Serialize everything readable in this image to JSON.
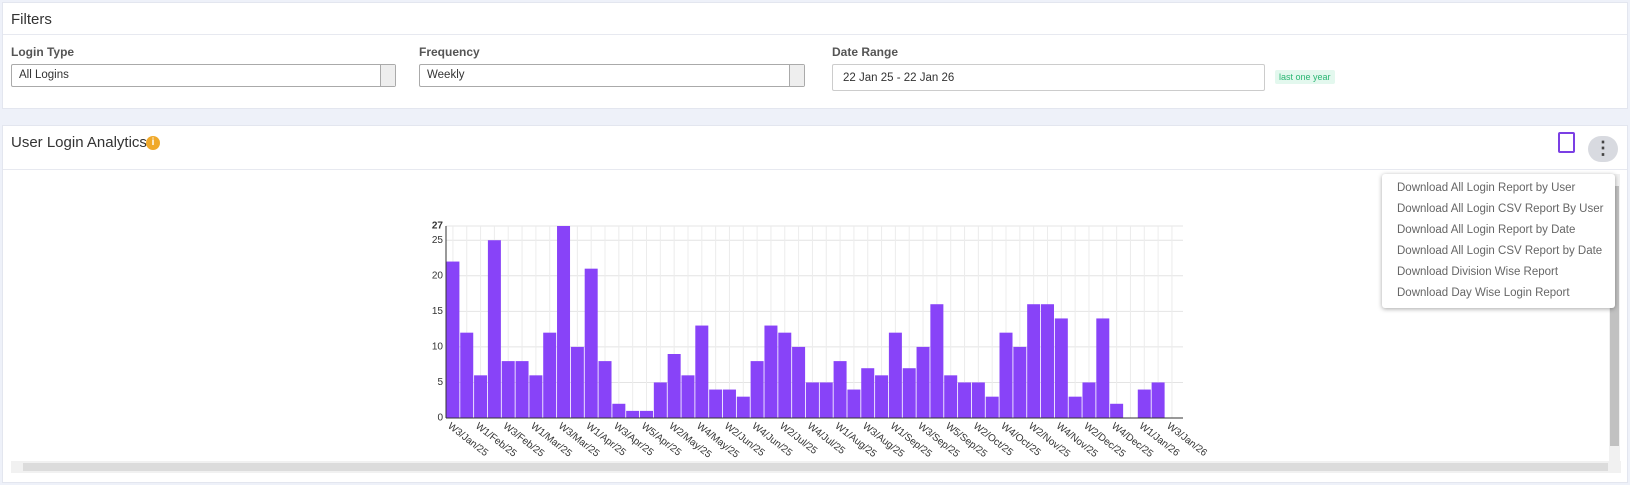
{
  "filters": {
    "title": "Filters",
    "login_type": {
      "label": "Login Type",
      "value": "All Logins"
    },
    "frequency": {
      "label": "Frequency",
      "value": "Weekly"
    },
    "date_range": {
      "label": "Date Range",
      "value": "22 Jan 25 - 22 Jan 26",
      "badge": "last one year"
    }
  },
  "panel": {
    "title": "User Login Analytics",
    "menu": [
      "Download All Login Report by User",
      "Download All Login CSV Report By User",
      "Download All Login Report by Date",
      "Download All Login CSV Report by Date",
      "Download Division Wise Report",
      "Download Day Wise Login Report"
    ]
  },
  "chart_data": {
    "type": "bar",
    "categories": [
      "W3/Jan/25",
      null,
      "W1/Feb/25",
      null,
      "W3/Feb/25",
      null,
      "W1/Mar/25",
      null,
      "W3/Mar/25",
      null,
      "W1/Apr/25",
      null,
      "W3/Apr/25",
      null,
      "W5/Apr/25",
      null,
      "W2/May/25",
      null,
      "W4/May/25",
      null,
      "W2/Jun/25",
      null,
      "W4/Jun/25",
      null,
      "W2/Jul/25",
      null,
      "W4/Jul/25",
      null,
      "W1/Aug/25",
      null,
      "W3/Aug/25",
      null,
      "W1/Sep/25",
      null,
      "W3/Sep/25",
      null,
      "W5/Sep/25",
      null,
      "W2/Oct/25",
      null,
      "W4/Oct/25",
      null,
      "W2/Nov/25",
      null,
      "W4/Nov/25",
      null,
      "W2/Dec/25",
      null,
      "W4/Dec/25",
      null,
      "W1/Jan/26",
      null,
      "W3/Jan/26"
    ],
    "values": [
      22,
      12,
      6,
      25,
      8,
      8,
      6,
      12,
      27,
      10,
      21,
      8,
      2,
      1,
      1,
      5,
      9,
      6,
      13,
      4,
      4,
      3,
      8,
      13,
      12,
      10,
      5,
      5,
      8,
      4,
      7,
      6,
      12,
      7,
      10,
      16,
      6,
      5,
      5,
      3,
      12,
      10,
      16,
      16,
      14,
      3,
      5,
      14,
      2,
      0,
      4,
      5,
      0
    ],
    "color": "#8843f8",
    "ylim": [
      0,
      27
    ],
    "yticks": [
      0,
      5,
      10,
      15,
      20,
      25,
      27
    ],
    "grid": true
  }
}
